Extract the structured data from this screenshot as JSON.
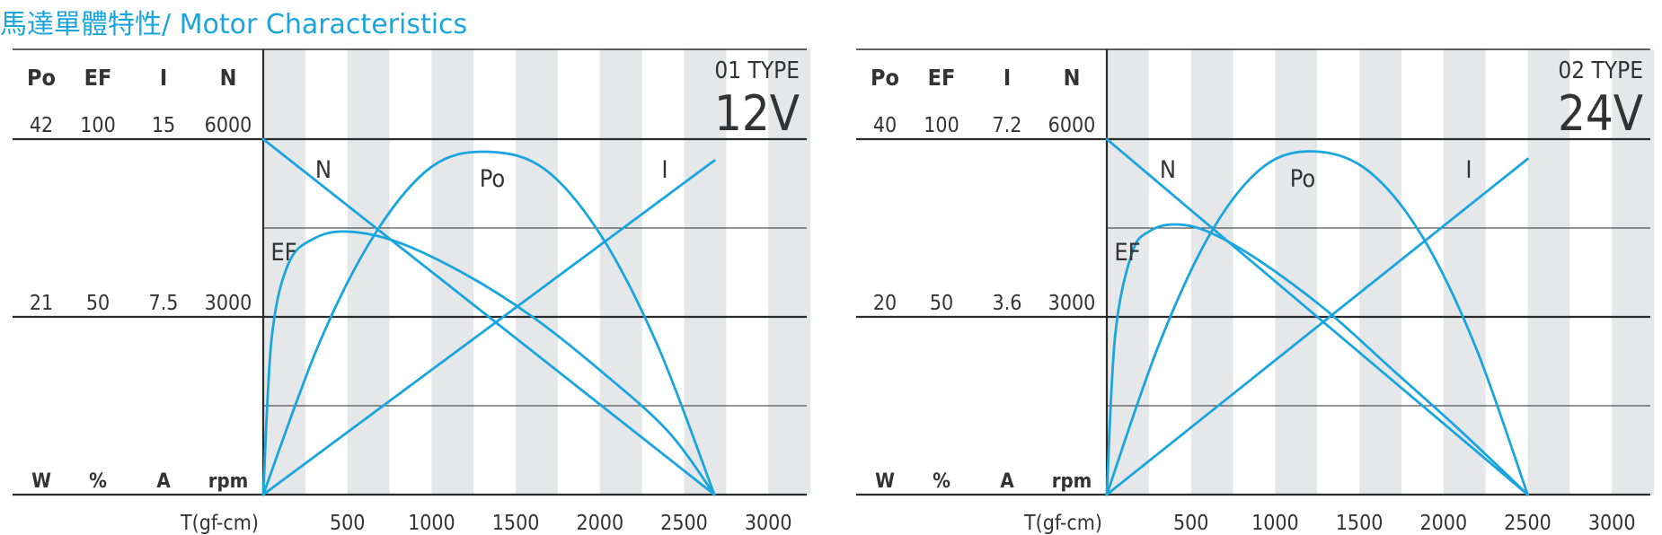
{
  "page": {
    "title": "馬達單體特性/ Motor Characteristics",
    "accent_color": "#1aa5df",
    "stripe_color": "#e6e7e9",
    "grid_color": "#2b2b2b"
  },
  "chart_data": [
    {
      "type": "line",
      "type_label": "01 TYPE",
      "voltage": "12V",
      "axis_headers": [
        "Po",
        "EF",
        "I",
        "N"
      ],
      "axis_units": [
        "W",
        "%",
        "A",
        "rpm"
      ],
      "axis_max_labels": [
        "42",
        "100",
        "15",
        "6000"
      ],
      "axis_mid_labels": [
        "21",
        "50",
        "7.5",
        "3000"
      ],
      "axis_max_values": [
        42,
        100,
        15,
        6000
      ],
      "xlabel": "T(gf-cm)",
      "x_ticks": [
        "500",
        "1000",
        "1500",
        "2000",
        "2500",
        "3000"
      ],
      "xlim": [
        0,
        3250
      ],
      "grid": true,
      "series": [
        {
          "name": "N",
          "axis": 3,
          "x": [
            0,
            2680
          ],
          "y": [
            6000,
            0
          ]
        },
        {
          "name": "I",
          "axis": 2,
          "x": [
            0,
            2680
          ],
          "y": [
            0,
            14.1
          ]
        },
        {
          "name": "Po",
          "axis": 0,
          "x": [
            0,
            335,
            670,
            1005,
            1340,
            1675,
            2010,
            2345,
            2680
          ],
          "y": [
            0,
            18.0,
            31.0,
            38.8,
            40.5,
            38.4,
            30.5,
            17.5,
            0
          ]
        },
        {
          "name": "EF",
          "axis": 1,
          "x": [
            0,
            50,
            150,
            300,
            500,
            800,
            1200,
            1600,
            2000,
            2400,
            2680
          ],
          "y": [
            0,
            44,
            65,
            72,
            74,
            71,
            62,
            50,
            35,
            18,
            0
          ]
        }
      ]
    },
    {
      "type": "line",
      "type_label": "02 TYPE",
      "voltage": "24V",
      "axis_headers": [
        "Po",
        "EF",
        "I",
        "N"
      ],
      "axis_units": [
        "W",
        "%",
        "A",
        "rpm"
      ],
      "axis_max_labels": [
        "40",
        "100",
        "7.2",
        "6000"
      ],
      "axis_mid_labels": [
        "20",
        "50",
        "3.6",
        "3000"
      ],
      "axis_max_values": [
        40,
        100,
        7.2,
        6000
      ],
      "xlabel": "T(gf-cm)",
      "x_ticks": [
        "500",
        "1000",
        "1500",
        "2000",
        "2500",
        "3000"
      ],
      "xlim": [
        0,
        3250
      ],
      "grid": true,
      "series": [
        {
          "name": "N",
          "axis": 3,
          "x": [
            0,
            2500
          ],
          "y": [
            6000,
            0
          ]
        },
        {
          "name": "I",
          "axis": 2,
          "x": [
            0,
            2500
          ],
          "y": [
            0,
            6.8
          ]
        },
        {
          "name": "Po",
          "axis": 0,
          "x": [
            0,
            312,
            625,
            937,
            1250,
            1562,
            1875,
            2187,
            2500
          ],
          "y": [
            0,
            17.0,
            29.7,
            37.0,
            38.6,
            36.3,
            29.0,
            16.8,
            0
          ]
        },
        {
          "name": "EF",
          "axis": 1,
          "x": [
            0,
            50,
            150,
            250,
            400,
            600,
            900,
            1300,
            1700,
            2100,
            2500
          ],
          "y": [
            0,
            45,
            68,
            74,
            76,
            74,
            66,
            52,
            35,
            18,
            0
          ]
        }
      ]
    }
  ]
}
